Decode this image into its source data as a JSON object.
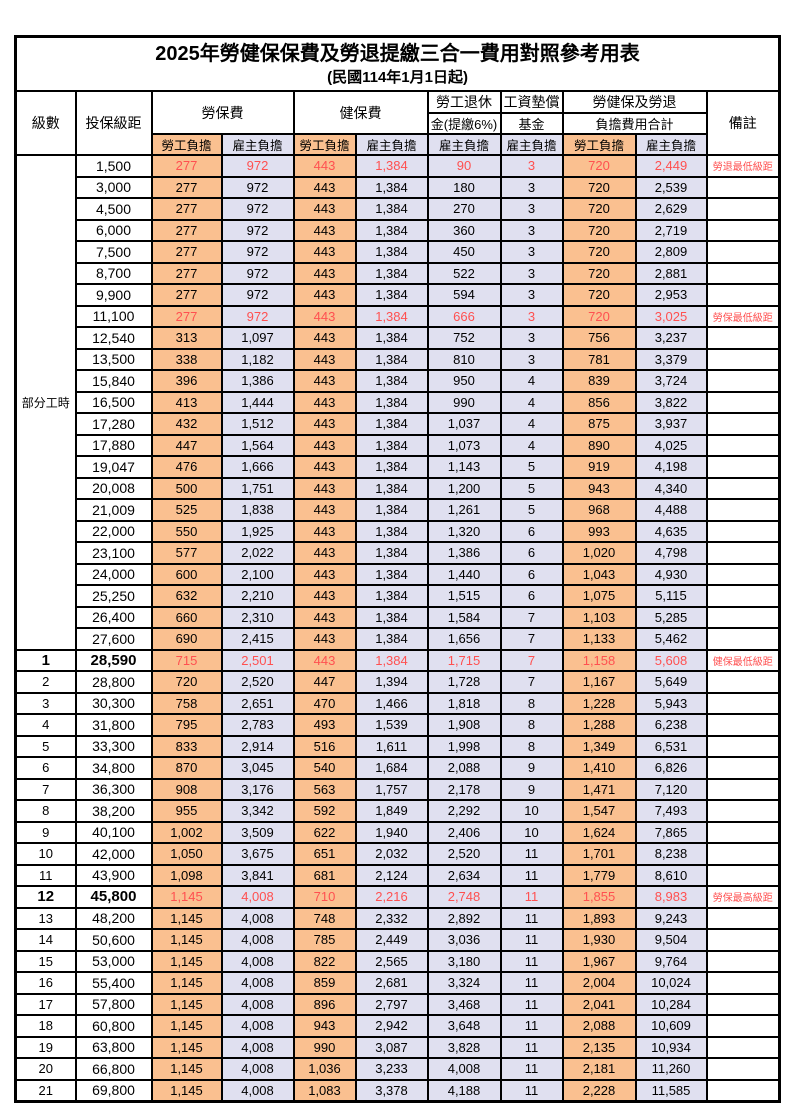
{
  "table": {
    "title": "2025年勞健保保費及勞退提繳三合一費用對照參考用表",
    "subtitle": "(民國114年1月1日起)",
    "columns": {
      "level": "級數",
      "bracket": "投保級距",
      "labor_fee": "勞保費",
      "health_fee": "健保費",
      "pension_line1": "勞工退休",
      "pension_line2": "金(提繳6%)",
      "wage_fund_line1": "工資墊償",
      "wage_fund_line2": "基金",
      "total_line1": "勞健保及勞退",
      "total_line2": "負擔費用合計",
      "remark": "備註",
      "worker_share": "勞工負擔",
      "employer_share": "雇主負擔"
    },
    "part_time_label": "部分工時",
    "colors": {
      "worker_bg": "#FAC090",
      "employer_bg": "#E0E0F0",
      "highlight_text": "#FF5050",
      "border": "#000000"
    },
    "rows": [
      {
        "level": "",
        "bracket": "1,500",
        "values": [
          "277",
          "972",
          "443",
          "1,384",
          "90",
          "3",
          "720",
          "2,449"
        ],
        "note": "勞退最低級距",
        "highlight": true,
        "bold": false
      },
      {
        "level": "",
        "bracket": "3,000",
        "values": [
          "277",
          "972",
          "443",
          "1,384",
          "180",
          "3",
          "720",
          "2,539"
        ],
        "note": "",
        "highlight": false,
        "bold": false
      },
      {
        "level": "",
        "bracket": "4,500",
        "values": [
          "277",
          "972",
          "443",
          "1,384",
          "270",
          "3",
          "720",
          "2,629"
        ],
        "note": "",
        "highlight": false,
        "bold": false
      },
      {
        "level": "",
        "bracket": "6,000",
        "values": [
          "277",
          "972",
          "443",
          "1,384",
          "360",
          "3",
          "720",
          "2,719"
        ],
        "note": "",
        "highlight": false,
        "bold": false
      },
      {
        "level": "",
        "bracket": "7,500",
        "values": [
          "277",
          "972",
          "443",
          "1,384",
          "450",
          "3",
          "720",
          "2,809"
        ],
        "note": "",
        "highlight": false,
        "bold": false
      },
      {
        "level": "",
        "bracket": "8,700",
        "values": [
          "277",
          "972",
          "443",
          "1,384",
          "522",
          "3",
          "720",
          "2,881"
        ],
        "note": "",
        "highlight": false,
        "bold": false
      },
      {
        "level": "",
        "bracket": "9,900",
        "values": [
          "277",
          "972",
          "443",
          "1,384",
          "594",
          "3",
          "720",
          "2,953"
        ],
        "note": "",
        "highlight": false,
        "bold": false
      },
      {
        "level": "",
        "bracket": "11,100",
        "values": [
          "277",
          "972",
          "443",
          "1,384",
          "666",
          "3",
          "720",
          "3,025"
        ],
        "note": "勞保最低級距",
        "highlight": true,
        "bold": false
      },
      {
        "level": "",
        "bracket": "12,540",
        "values": [
          "313",
          "1,097",
          "443",
          "1,384",
          "752",
          "3",
          "756",
          "3,237"
        ],
        "note": "",
        "highlight": false,
        "bold": false
      },
      {
        "level": "",
        "bracket": "13,500",
        "values": [
          "338",
          "1,182",
          "443",
          "1,384",
          "810",
          "3",
          "781",
          "3,379"
        ],
        "note": "",
        "highlight": false,
        "bold": false
      },
      {
        "level": "",
        "bracket": "15,840",
        "values": [
          "396",
          "1,386",
          "443",
          "1,384",
          "950",
          "4",
          "839",
          "3,724"
        ],
        "note": "",
        "highlight": false,
        "bold": false
      },
      {
        "level": "",
        "bracket": "16,500",
        "values": [
          "413",
          "1,444",
          "443",
          "1,384",
          "990",
          "4",
          "856",
          "3,822"
        ],
        "note": "",
        "highlight": false,
        "bold": false
      },
      {
        "level": "",
        "bracket": "17,280",
        "values": [
          "432",
          "1,512",
          "443",
          "1,384",
          "1,037",
          "4",
          "875",
          "3,937"
        ],
        "note": "",
        "highlight": false,
        "bold": false
      },
      {
        "level": "",
        "bracket": "17,880",
        "values": [
          "447",
          "1,564",
          "443",
          "1,384",
          "1,073",
          "4",
          "890",
          "4,025"
        ],
        "note": "",
        "highlight": false,
        "bold": false
      },
      {
        "level": "",
        "bracket": "19,047",
        "values": [
          "476",
          "1,666",
          "443",
          "1,384",
          "1,143",
          "5",
          "919",
          "4,198"
        ],
        "note": "",
        "highlight": false,
        "bold": false
      },
      {
        "level": "",
        "bracket": "20,008",
        "values": [
          "500",
          "1,751",
          "443",
          "1,384",
          "1,200",
          "5",
          "943",
          "4,340"
        ],
        "note": "",
        "highlight": false,
        "bold": false
      },
      {
        "level": "",
        "bracket": "21,009",
        "values": [
          "525",
          "1,838",
          "443",
          "1,384",
          "1,261",
          "5",
          "968",
          "4,488"
        ],
        "note": "",
        "highlight": false,
        "bold": false
      },
      {
        "level": "",
        "bracket": "22,000",
        "values": [
          "550",
          "1,925",
          "443",
          "1,384",
          "1,320",
          "6",
          "993",
          "4,635"
        ],
        "note": "",
        "highlight": false,
        "bold": false
      },
      {
        "level": "",
        "bracket": "23,100",
        "values": [
          "577",
          "2,022",
          "443",
          "1,384",
          "1,386",
          "6",
          "1,020",
          "4,798"
        ],
        "note": "",
        "highlight": false,
        "bold": false
      },
      {
        "level": "",
        "bracket": "24,000",
        "values": [
          "600",
          "2,100",
          "443",
          "1,384",
          "1,440",
          "6",
          "1,043",
          "4,930"
        ],
        "note": "",
        "highlight": false,
        "bold": false
      },
      {
        "level": "",
        "bracket": "25,250",
        "values": [
          "632",
          "2,210",
          "443",
          "1,384",
          "1,515",
          "6",
          "1,075",
          "5,115"
        ],
        "note": "",
        "highlight": false,
        "bold": false
      },
      {
        "level": "",
        "bracket": "26,400",
        "values": [
          "660",
          "2,310",
          "443",
          "1,384",
          "1,584",
          "7",
          "1,103",
          "5,285"
        ],
        "note": "",
        "highlight": false,
        "bold": false
      },
      {
        "level": "",
        "bracket": "27,600",
        "values": [
          "690",
          "2,415",
          "443",
          "1,384",
          "1,656",
          "7",
          "1,133",
          "5,462"
        ],
        "note": "",
        "highlight": false,
        "bold": false
      },
      {
        "level": "1",
        "bracket": "28,590",
        "values": [
          "715",
          "2,501",
          "443",
          "1,384",
          "1,715",
          "7",
          "1,158",
          "5,608"
        ],
        "note": "健保最低級距",
        "highlight": true,
        "bold": true
      },
      {
        "level": "2",
        "bracket": "28,800",
        "values": [
          "720",
          "2,520",
          "447",
          "1,394",
          "1,728",
          "7",
          "1,167",
          "5,649"
        ],
        "note": "",
        "highlight": false,
        "bold": false
      },
      {
        "level": "3",
        "bracket": "30,300",
        "values": [
          "758",
          "2,651",
          "470",
          "1,466",
          "1,818",
          "8",
          "1,228",
          "5,943"
        ],
        "note": "",
        "highlight": false,
        "bold": false
      },
      {
        "level": "4",
        "bracket": "31,800",
        "values": [
          "795",
          "2,783",
          "493",
          "1,539",
          "1,908",
          "8",
          "1,288",
          "6,238"
        ],
        "note": "",
        "highlight": false,
        "bold": false
      },
      {
        "level": "5",
        "bracket": "33,300",
        "values": [
          "833",
          "2,914",
          "516",
          "1,611",
          "1,998",
          "8",
          "1,349",
          "6,531"
        ],
        "note": "",
        "highlight": false,
        "bold": false
      },
      {
        "level": "6",
        "bracket": "34,800",
        "values": [
          "870",
          "3,045",
          "540",
          "1,684",
          "2,088",
          "9",
          "1,410",
          "6,826"
        ],
        "note": "",
        "highlight": false,
        "bold": false
      },
      {
        "level": "7",
        "bracket": "36,300",
        "values": [
          "908",
          "3,176",
          "563",
          "1,757",
          "2,178",
          "9",
          "1,471",
          "7,120"
        ],
        "note": "",
        "highlight": false,
        "bold": false
      },
      {
        "level": "8",
        "bracket": "38,200",
        "values": [
          "955",
          "3,342",
          "592",
          "1,849",
          "2,292",
          "10",
          "1,547",
          "7,493"
        ],
        "note": "",
        "highlight": false,
        "bold": false
      },
      {
        "level": "9",
        "bracket": "40,100",
        "values": [
          "1,002",
          "3,509",
          "622",
          "1,940",
          "2,406",
          "10",
          "1,624",
          "7,865"
        ],
        "note": "",
        "highlight": false,
        "bold": false
      },
      {
        "level": "10",
        "bracket": "42,000",
        "values": [
          "1,050",
          "3,675",
          "651",
          "2,032",
          "2,520",
          "11",
          "1,701",
          "8,238"
        ],
        "note": "",
        "highlight": false,
        "bold": false
      },
      {
        "level": "11",
        "bracket": "43,900",
        "values": [
          "1,098",
          "3,841",
          "681",
          "2,124",
          "2,634",
          "11",
          "1,779",
          "8,610"
        ],
        "note": "",
        "highlight": false,
        "bold": false
      },
      {
        "level": "12",
        "bracket": "45,800",
        "values": [
          "1,145",
          "4,008",
          "710",
          "2,216",
          "2,748",
          "11",
          "1,855",
          "8,983"
        ],
        "note": "勞保最高級距",
        "highlight": true,
        "bold": true
      },
      {
        "level": "13",
        "bracket": "48,200",
        "values": [
          "1,145",
          "4,008",
          "748",
          "2,332",
          "2,892",
          "11",
          "1,893",
          "9,243"
        ],
        "note": "",
        "highlight": false,
        "bold": false
      },
      {
        "level": "14",
        "bracket": "50,600",
        "values": [
          "1,145",
          "4,008",
          "785",
          "2,449",
          "3,036",
          "11",
          "1,930",
          "9,504"
        ],
        "note": "",
        "highlight": false,
        "bold": false
      },
      {
        "level": "15",
        "bracket": "53,000",
        "values": [
          "1,145",
          "4,008",
          "822",
          "2,565",
          "3,180",
          "11",
          "1,967",
          "9,764"
        ],
        "note": "",
        "highlight": false,
        "bold": false
      },
      {
        "level": "16",
        "bracket": "55,400",
        "values": [
          "1,145",
          "4,008",
          "859",
          "2,681",
          "3,324",
          "11",
          "2,004",
          "10,024"
        ],
        "note": "",
        "highlight": false,
        "bold": false
      },
      {
        "level": "17",
        "bracket": "57,800",
        "values": [
          "1,145",
          "4,008",
          "896",
          "2,797",
          "3,468",
          "11",
          "2,041",
          "10,284"
        ],
        "note": "",
        "highlight": false,
        "bold": false
      },
      {
        "level": "18",
        "bracket": "60,800",
        "values": [
          "1,145",
          "4,008",
          "943",
          "2,942",
          "3,648",
          "11",
          "2,088",
          "10,609"
        ],
        "note": "",
        "highlight": false,
        "bold": false
      },
      {
        "level": "19",
        "bracket": "63,800",
        "values": [
          "1,145",
          "4,008",
          "990",
          "3,087",
          "3,828",
          "11",
          "2,135",
          "10,934"
        ],
        "note": "",
        "highlight": false,
        "bold": false
      },
      {
        "level": "20",
        "bracket": "66,800",
        "values": [
          "1,145",
          "4,008",
          "1,036",
          "3,233",
          "4,008",
          "11",
          "2,181",
          "11,260"
        ],
        "note": "",
        "highlight": false,
        "bold": false
      },
      {
        "level": "21",
        "bracket": "69,800",
        "values": [
          "1,145",
          "4,008",
          "1,083",
          "3,378",
          "4,188",
          "11",
          "2,228",
          "11,585"
        ],
        "note": "",
        "highlight": false,
        "bold": false
      }
    ]
  }
}
